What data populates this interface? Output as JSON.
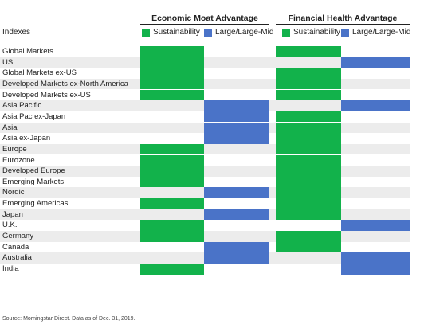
{
  "chart_data": {
    "type": "table",
    "row_header": "Indexes",
    "groups": [
      {
        "title": "Economic Moat Advantage",
        "columns": [
          "Sustainability",
          "Large/Large-Mid"
        ]
      },
      {
        "title": "Financial Health Advantage",
        "columns": [
          "Sustainability",
          "Large/Large-Mid"
        ]
      }
    ],
    "colors": {
      "Sustainability": "#12b24b",
      "Large/Large-Mid": "#4a73c8",
      "row_band": "#ececec"
    },
    "rows": [
      {
        "label": "Global Markets",
        "moat": "Sustainability",
        "fin": "Sustainability"
      },
      {
        "label": "US",
        "moat": "Sustainability",
        "fin": "Large/Large-Mid"
      },
      {
        "label": "Global Markets ex-US",
        "moat": "Sustainability",
        "fin": "Sustainability"
      },
      {
        "label": "Developed Markets ex-North America",
        "moat": "Sustainability",
        "fin": "Sustainability"
      },
      {
        "label": "Developed Markets ex-US",
        "moat": "Sustainability",
        "fin": "Sustainability"
      },
      {
        "label": "Asia Pacific",
        "moat": "Large/Large-Mid",
        "fin": "Large/Large-Mid"
      },
      {
        "label": "Asia Pac ex-Japan",
        "moat": "Large/Large-Mid",
        "fin": "Sustainability"
      },
      {
        "label": "Asia",
        "moat": "Large/Large-Mid",
        "fin": "Sustainability"
      },
      {
        "label": "Asia ex-Japan",
        "moat": "Large/Large-Mid",
        "fin": "Sustainability"
      },
      {
        "label": "Europe",
        "moat": "Sustainability",
        "fin": "Sustainability"
      },
      {
        "label": "Eurozone",
        "moat": "Sustainability",
        "fin": "Sustainability"
      },
      {
        "label": "Developed Europe",
        "moat": "Sustainability",
        "fin": "Sustainability"
      },
      {
        "label": "Emerging Markets",
        "moat": "Sustainability",
        "fin": "Sustainability"
      },
      {
        "label": "Nordic",
        "moat": "Large/Large-Mid",
        "fin": "Sustainability"
      },
      {
        "label": "Emerging Americas",
        "moat": "Sustainability",
        "fin": "Sustainability"
      },
      {
        "label": "Japan",
        "moat": "Large/Large-Mid",
        "fin": "Sustainability"
      },
      {
        "label": "U.K.",
        "moat": "Sustainability",
        "fin": "Large/Large-Mid"
      },
      {
        "label": "Germany",
        "moat": "Sustainability",
        "fin": "Sustainability"
      },
      {
        "label": "Canada",
        "moat": "Large/Large-Mid",
        "fin": "Sustainability"
      },
      {
        "label": "Australia",
        "moat": "Large/Large-Mid",
        "fin": "Large/Large-Mid"
      },
      {
        "label": "India",
        "moat": "Sustainability",
        "fin": "Large/Large-Mid"
      }
    ]
  },
  "footer": "Source: Morningstar Direct. Data as of Dec. 31, 2019."
}
